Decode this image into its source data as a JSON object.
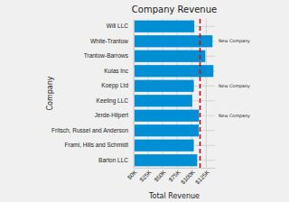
{
  "chart_data": {
    "type": "bar",
    "orientation": "horizontal",
    "title": "Company Revenue",
    "x_label": "Total Revenue",
    "y_label": "Company",
    "categories": [
      "Will LLC",
      "White-Trantow",
      "Trantow-Barrows",
      "Kulas Inc",
      "Koepp Ltd",
      "Keeling LLC",
      "Jerde-Hilpert",
      "Fritsch, Russel and Anderson",
      "Frami, Hills and Schmidt",
      "Barton LLC"
    ],
    "values": [
      104437.6,
      135841.99,
      123381.38,
      137351.96,
      103660.54,
      100934.3,
      112591.43,
      112214.71,
      103569.59,
      109438.5
    ],
    "color": "#008fd5",
    "xlim": [
      0,
      140000
    ],
    "xticks": [
      {
        "value": 0,
        "label": "$0K"
      },
      {
        "value": 25000,
        "label": "$25K"
      },
      {
        "value": 50000,
        "label": "$50K"
      },
      {
        "value": 75000,
        "label": "$75K"
      },
      {
        "value": 100000,
        "label": "$100K"
      },
      {
        "value": 125000,
        "label": "$125K"
      }
    ],
    "grid": true,
    "reference_line": 114342.2,
    "annotations": [
      {
        "text": "New Company",
        "category": "White-Trantow"
      },
      {
        "text": "New Company",
        "category": "Koepp Ltd"
      },
      {
        "text": "New Company",
        "category": "Jerde-Hilpert"
      }
    ]
  }
}
